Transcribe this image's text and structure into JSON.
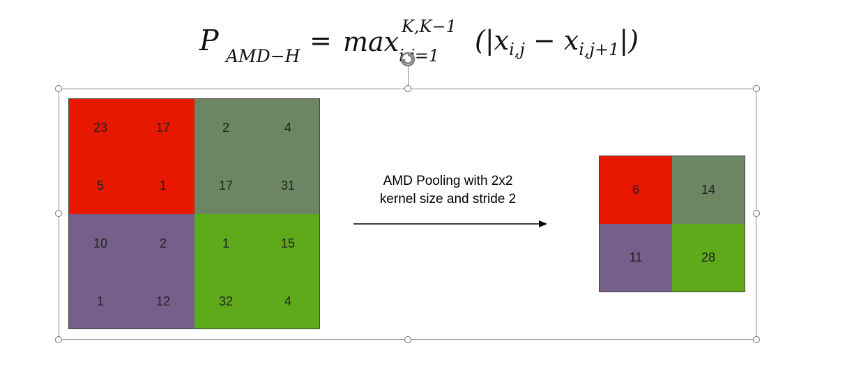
{
  "formula": {
    "P": "P",
    "P_sub": "AMD−H",
    "equals": "=",
    "max": "max",
    "max_sup": "K,K−1",
    "max_sub": "i,j=1",
    "body_open": "(|x",
    "body_sub1": "i,j",
    "body_mid": " − x",
    "body_sub2": "i,j+1",
    "body_close": "|)"
  },
  "input_grid": {
    "rows": [
      [
        "23",
        "17",
        "2",
        "4"
      ],
      [
        "5",
        "1",
        "17",
        "31"
      ],
      [
        "10",
        "2",
        "1",
        "15"
      ],
      [
        "1",
        "12",
        "32",
        "4"
      ]
    ]
  },
  "operation": {
    "line1": "AMD Pooling with 2x2",
    "line2": "kernel size and stride 2"
  },
  "output_grid": {
    "rows": [
      [
        "6",
        "14"
      ],
      [
        "11",
        "28"
      ]
    ]
  },
  "colors": {
    "top_left": "#e71700",
    "top_right": "#6c8663",
    "bottom_left": "#765f8a",
    "bottom_right": "#5eaa1b"
  }
}
